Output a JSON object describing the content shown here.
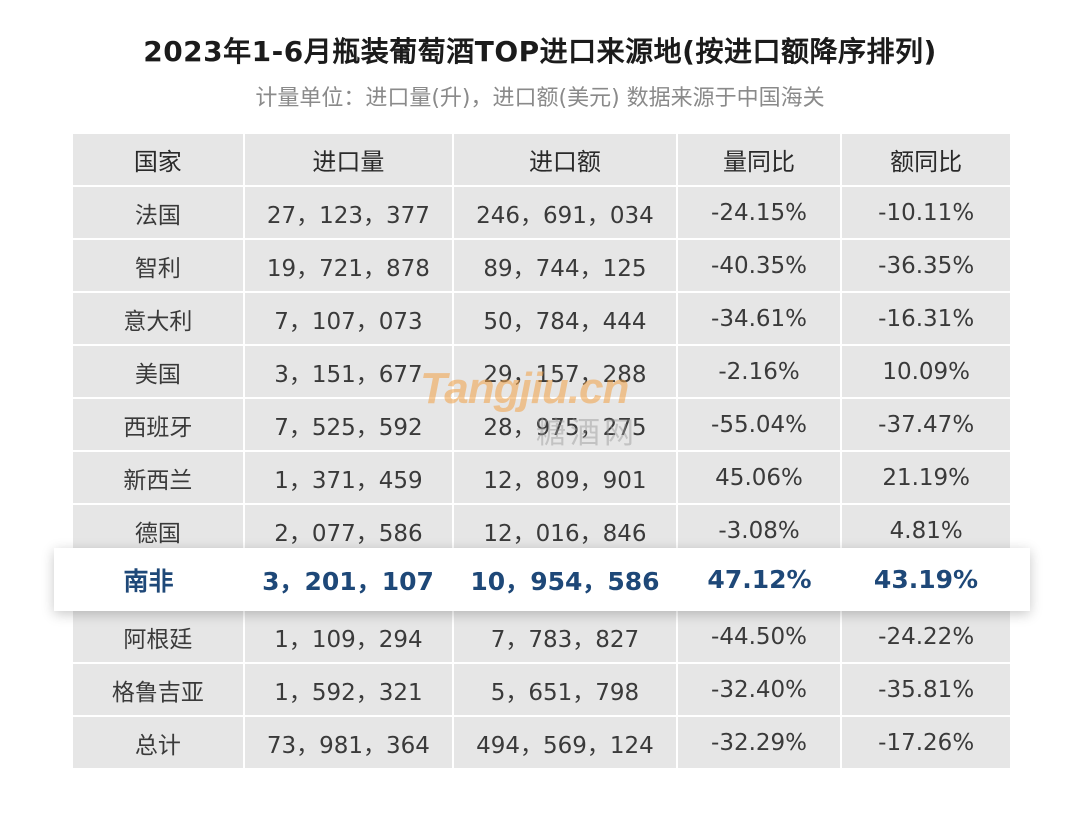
{
  "chart_data": {
    "type": "table",
    "title": "2023年1-6月瓶装葡萄酒TOP进口来源地(按进口额降序排列)",
    "subtitle": "计量单位：进口量(升)，进口额(美元)  数据来源于中国海关",
    "columns": [
      "国家",
      "进口量",
      "进口额",
      "量同比",
      "额同比"
    ],
    "rows": [
      [
        "法国",
        "27，123，377",
        "246，691，034",
        "-24.15%",
        "-10.11%"
      ],
      [
        "智利",
        "19，721，878",
        "89，744，125",
        "-40.35%",
        "-36.35%"
      ],
      [
        "意大利",
        "7，107，073",
        "50，784，444",
        "-34.61%",
        "-16.31%"
      ],
      [
        "美国",
        "3，151，677",
        "29，157，288",
        "-2.16%",
        "10.09%"
      ],
      [
        "西班牙",
        "7，525，592",
        "28，975，275",
        "-55.04%",
        "-37.47%"
      ],
      [
        "新西兰",
        "1，371，459",
        "12，809，901",
        "45.06%",
        "21.19%"
      ],
      [
        "德国",
        "2，077，586",
        "12，016，846",
        "-3.08%",
        "4.81%"
      ],
      [
        "南非",
        "3，201，107",
        "10，954，586",
        "47.12%",
        "43.19%"
      ],
      [
        "阿根廷",
        "1，109，294",
        "7，783，827",
        "-44.50%",
        "-24.22%"
      ],
      [
        "格鲁吉亚",
        "1，592，321",
        "5，651，798",
        "-32.40%",
        "-35.81%"
      ],
      [
        "总计",
        "73，981，364",
        "494，569，124",
        "-32.29%",
        "-17.26%"
      ]
    ],
    "highlight_row": 7,
    "highlight_color": "#1e4878"
  },
  "watermark": {
    "brand": "Tangjiu.cn",
    "cn": "糖酒网"
  }
}
